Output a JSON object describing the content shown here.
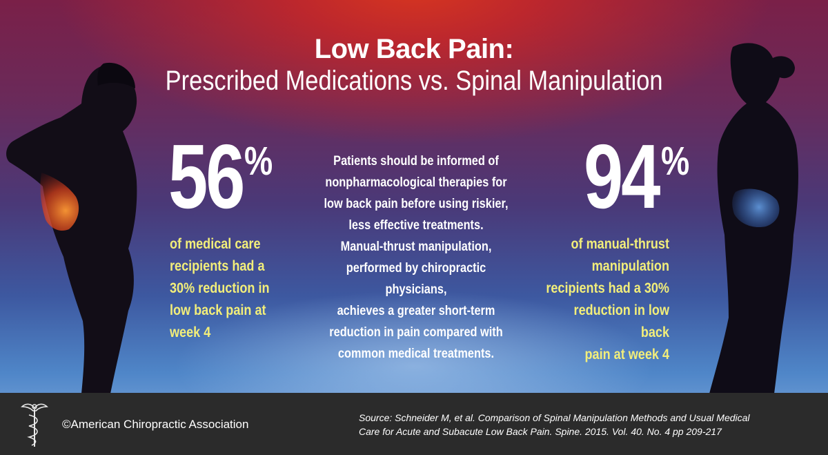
{
  "title": {
    "line1": "Low Back Pain:",
    "line2": "Prescribed Medications vs. Spinal Manipulation"
  },
  "left_stat": {
    "value": "56",
    "unit": "%",
    "description_lines": [
      "of medical care",
      "recipients had a",
      "30% reduction in",
      "low back pain at",
      "week 4"
    ]
  },
  "right_stat": {
    "value": "94",
    "unit": "%",
    "description_lines": [
      "of manual-thrust",
      "manipulation",
      "recipients had a 30%",
      "reduction in low back",
      "pain at week 4"
    ]
  },
  "center_lines": [
    "Patients should be informed of",
    "nonpharmacological therapies for",
    "low back pain before using riskier,",
    "less effective treatments.",
    "Manual-thrust manipulation,",
    "performed by chiropractic physicians,",
    "achieves a greater short-term",
    "reduction in pain compared with",
    "common medical treatments."
  ],
  "footer": {
    "copyright": "©American Chiropractic Association",
    "source_lines": [
      "Source:  Schneider M, et al. Comparison of Spinal Manipulation Methods and Usual Medical",
      "Care for Acute and Subacute Low Back Pain. Spine. 2015. Vol. 40. No. 4 pp 209-217"
    ]
  },
  "colors": {
    "highlight_text": "#f2ee7a",
    "footer_bg": "#2b2b2b",
    "pain_glow": "#ff7a2a",
    "relief_glow": "#6fa8ff"
  },
  "icons": {
    "logo": "caduceus-icon"
  }
}
